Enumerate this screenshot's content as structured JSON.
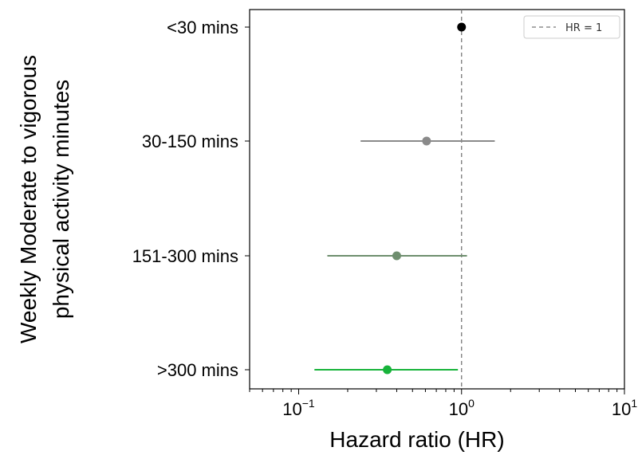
{
  "chart_data": {
    "type": "scatter",
    "subtype": "forest-plot",
    "xscale": "log",
    "xlim": [
      0.05,
      10
    ],
    "xticks": [
      {
        "value": 0.1,
        "base": "10",
        "exp": "−1"
      },
      {
        "value": 1,
        "base": "10",
        "exp": "0"
      },
      {
        "value": 10,
        "base": "10",
        "exp": "1"
      }
    ],
    "xlabel": "Hazard ratio (HR)",
    "ylabel_lines": [
      "Weekly Moderate to vigorous",
      "physical activity minutes"
    ],
    "categories": [
      "<30 mins",
      "30-150 mins",
      "151-300 mins",
      ">300 mins"
    ],
    "points": [
      {
        "label": "<30 mins",
        "hr": 1.0,
        "lower": 1.0,
        "upper": 1.0,
        "color": "#000000"
      },
      {
        "label": "30-150 mins",
        "hr": 0.61,
        "lower": 0.24,
        "upper": 1.6,
        "color": "#8a8a8a"
      },
      {
        "label": "151-300 mins",
        "hr": 0.4,
        "lower": 0.15,
        "upper": 1.08,
        "color": "#6e8e6e"
      },
      {
        "label": ">300 mins",
        "hr": 0.35,
        "lower": 0.125,
        "upper": 0.95,
        "color": "#17b33a"
      }
    ],
    "reference_line": {
      "value": 1,
      "style": "dashed",
      "color": "#777777"
    },
    "legend": {
      "position": "top-right",
      "entries": [
        {
          "label": "HR = 1",
          "style": "dashed"
        }
      ]
    },
    "grid": false
  }
}
